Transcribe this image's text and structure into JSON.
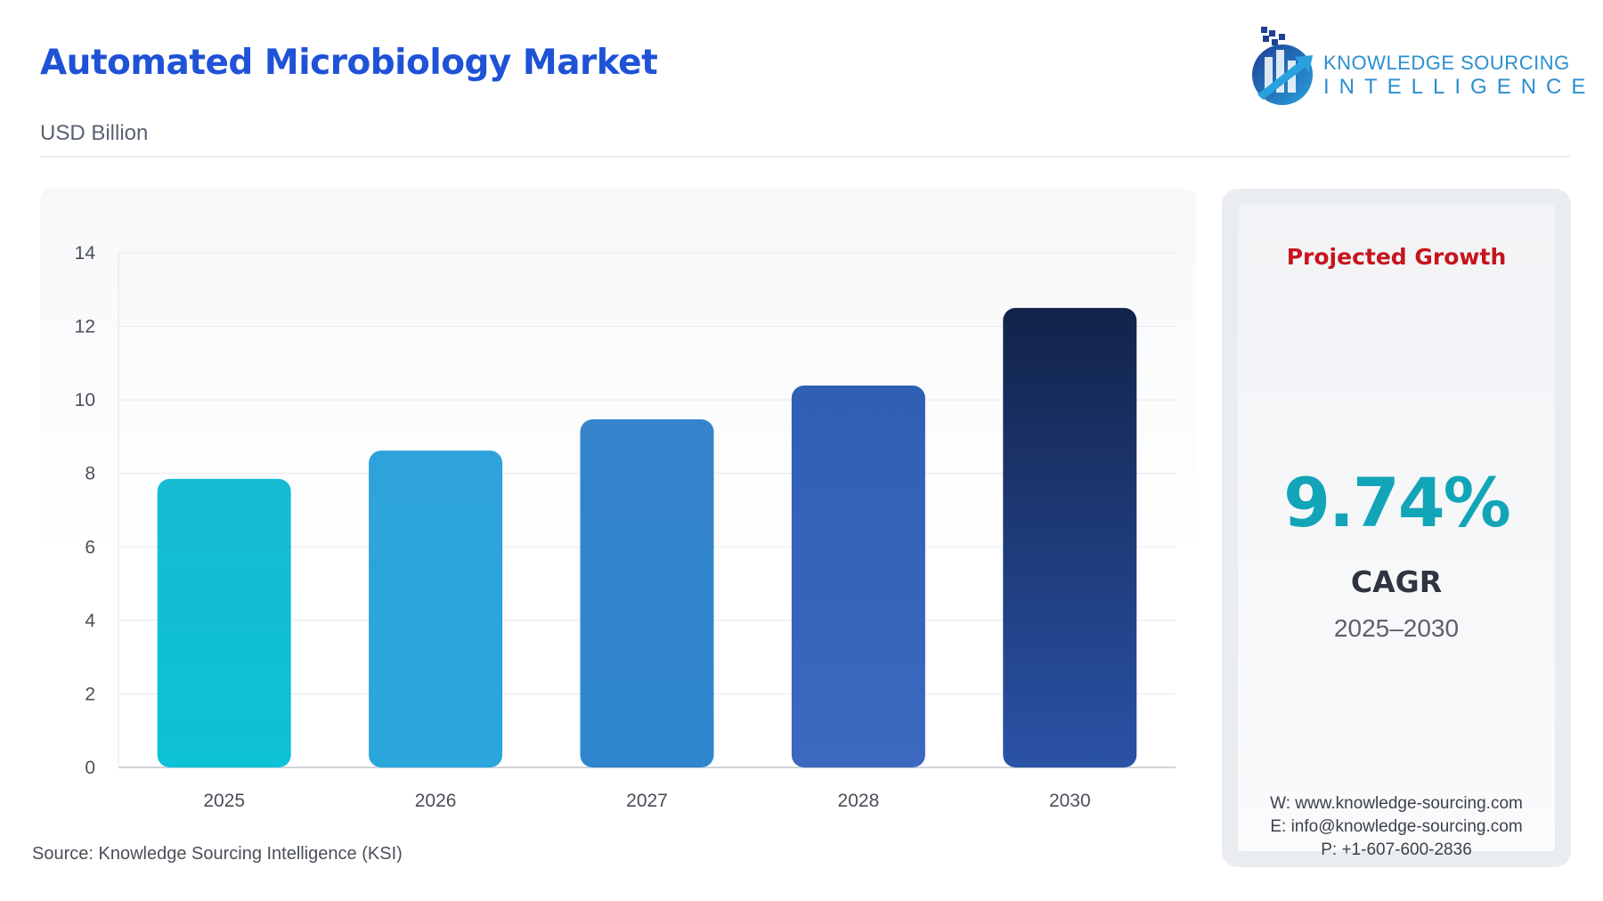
{
  "header": {
    "title": "Automated Microbiology Market",
    "subtitle": "USD Billion"
  },
  "logo": {
    "line1": "KNOWLEDGE SOURCING",
    "line2": "INTELLIGENCE",
    "icon": "bar-growth-arrow-logo-icon"
  },
  "chart_data": {
    "type": "bar",
    "categories": [
      "2025",
      "2026",
      "2027",
      "2028",
      "2030"
    ],
    "values": [
      7.85,
      8.62,
      9.47,
      10.39,
      12.5
    ],
    "ylim": [
      0,
      14
    ],
    "yticks": [
      0,
      2,
      4,
      6,
      8,
      10,
      12,
      14
    ],
    "grid": true,
    "bar_colors": [
      [
        "#16bcd3",
        "#0dc1d6"
      ],
      [
        "#2ea3db",
        "#2aa6dc"
      ],
      [
        "#3584cc",
        "#2f86cf"
      ],
      [
        "#2f60b4",
        "#3d68c0"
      ],
      [
        "#12234a",
        "#2a52a6"
      ]
    ]
  },
  "side_panel": {
    "heading": "Projected Growth",
    "cagr_value": "9.74%",
    "cagr_label": "CAGR",
    "period": "2025–2030",
    "website": "W: www.knowledge-sourcing.com",
    "email": "E: info@knowledge-sourcing.com",
    "phone": "P: +1-607-600-2836"
  },
  "footer": {
    "source": "Source: Knowledge Sourcing Intelligence (KSI)"
  },
  "colors": {
    "title": "#1f52d6",
    "accent_red": "#c8141c",
    "accent_teal": "#12a5b8"
  }
}
